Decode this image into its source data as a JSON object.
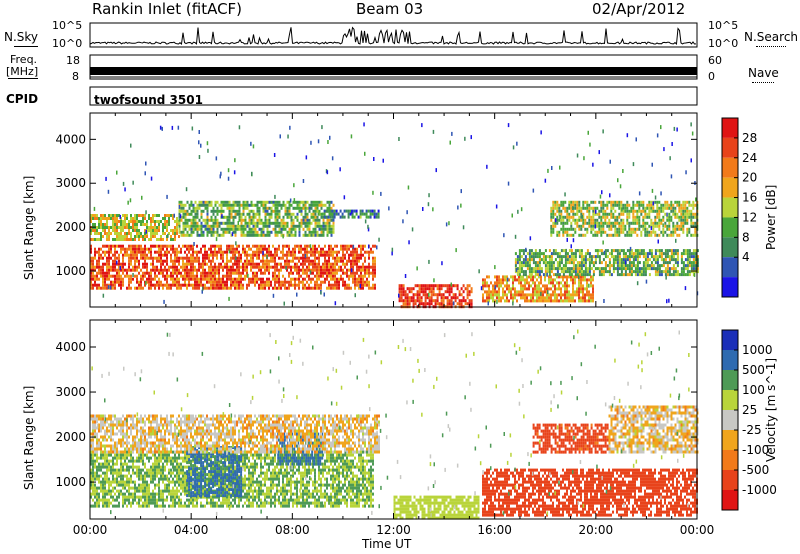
{
  "header": {
    "station": "Rankin Inlet (fitACF)",
    "beam": "Beam 03",
    "date": "02/Apr/2012"
  },
  "nsky_panel": {
    "left_label": "N.Sky",
    "right_label": "N.Search",
    "ticks": [
      "10^5",
      "10^0"
    ],
    "right_ticks": [
      "10^5",
      "10^0"
    ]
  },
  "freq_panel": {
    "left_label": "Freq.",
    "left_unit": "[MHz]",
    "ticks": [
      "18",
      "8"
    ],
    "right_label": "Nave",
    "right_ticks": [
      "60",
      "0"
    ]
  },
  "cpid": {
    "label": "CPID",
    "value": "twofsound 3501"
  },
  "colors": {
    "power_scale": [
      "#1b14e6",
      "#2f55b4",
      "#3f8a5a",
      "#49a63a",
      "#b9d43a",
      "#f0a51c",
      "#f27a1a",
      "#e8431b",
      "#e01414"
    ],
    "velocity_scale": [
      "#e01414",
      "#e8431b",
      "#f27a1a",
      "#f0a51c",
      "#c8c8c4",
      "#b9d43a",
      "#4e9a56",
      "#2f6bb0",
      "#1b2fb8"
    ]
  },
  "chart_data": [
    {
      "type": "heatmap",
      "title": "",
      "xlabel": "",
      "ylabel": "Slant Range [km]",
      "xlim": [
        0,
        24
      ],
      "ylim": [
        180,
        4600
      ],
      "x_ticks": [
        "00:00",
        "04:00",
        "08:00",
        "12:00",
        "16:00",
        "20:00",
        "00:00"
      ],
      "y_ticks": [
        1000,
        2000,
        3000,
        4000
      ],
      "colorbar": {
        "label": "Power [dB]",
        "ticks": [
          "28",
          "24",
          "20",
          "16",
          "12",
          "8",
          "4"
        ],
        "range": [
          0,
          30
        ]
      },
      "features": [
        {
          "t0": 0.0,
          "t1": 11.3,
          "r0": 600,
          "r1": 1600,
          "level": 24
        },
        {
          "t0": 0.0,
          "t1": 3.5,
          "r0": 1700,
          "r1": 2300,
          "level": 16
        },
        {
          "t0": 3.5,
          "t1": 9.6,
          "r0": 1800,
          "r1": 2600,
          "level": 12
        },
        {
          "t0": 9.0,
          "t1": 11.4,
          "r0": 2200,
          "r1": 2400,
          "level": 8
        },
        {
          "t0": 12.2,
          "t1": 15.1,
          "r0": 200,
          "r1": 700,
          "level": 26
        },
        {
          "t0": 15.5,
          "t1": 19.9,
          "r0": 300,
          "r1": 900,
          "level": 20
        },
        {
          "t0": 18.2,
          "t1": 24.0,
          "r0": 1800,
          "r1": 2600,
          "level": 14
        },
        {
          "t0": 16.8,
          "t1": 24.0,
          "r0": 900,
          "r1": 1500,
          "level": 12
        }
      ]
    },
    {
      "type": "heatmap",
      "title": "",
      "xlabel": "Time UT",
      "ylabel": "Slant Range [km]",
      "xlim": [
        0,
        24
      ],
      "ylim": [
        180,
        4600
      ],
      "x_ticks": [
        "00:00",
        "04:00",
        "08:00",
        "12:00",
        "16:00",
        "20:00",
        "00:00"
      ],
      "y_ticks": [
        1000,
        2000,
        3000,
        4000
      ],
      "colorbar": {
        "label": "Velocity [m s^-1]",
        "ticks": [
          "1000",
          "500",
          "100",
          "25",
          "-25",
          "-100",
          "-500",
          "-1000"
        ],
        "range": [
          -1000,
          1000
        ]
      },
      "features": [
        {
          "t0": 0.0,
          "t1": 11.2,
          "r0": 500,
          "r1": 1700,
          "level": 100
        },
        {
          "t0": 3.8,
          "t1": 6.0,
          "r0": 700,
          "r1": 1800,
          "level": 600
        },
        {
          "t0": 7.4,
          "t1": 9.2,
          "r0": 1400,
          "r1": 2100,
          "level": 600
        },
        {
          "t0": 0.0,
          "t1": 11.4,
          "r0": 1700,
          "r1": 2500,
          "level": 0
        },
        {
          "t0": 12.0,
          "t1": 15.4,
          "r0": 200,
          "r1": 700,
          "level": 60
        },
        {
          "t0": 15.5,
          "t1": 24.0,
          "r0": 300,
          "r1": 1300,
          "level": -200
        },
        {
          "t0": 17.5,
          "t1": 20.5,
          "r0": 1700,
          "r1": 2300,
          "level": -150
        },
        {
          "t0": 20.5,
          "t1": 24.0,
          "r0": 1700,
          "r1": 2700,
          "level": 0
        }
      ]
    }
  ]
}
